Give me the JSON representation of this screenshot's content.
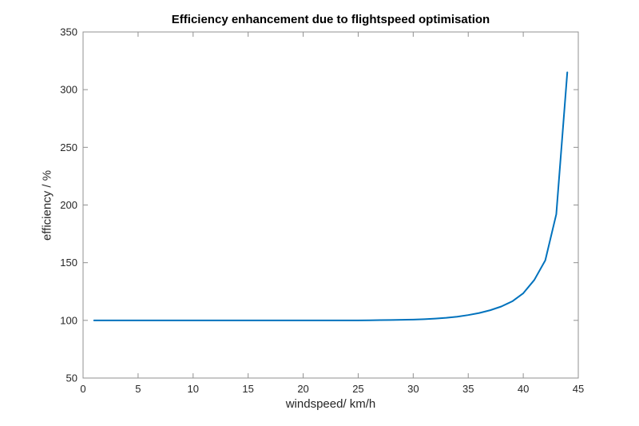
{
  "figure": {
    "background_color": "#ffffff",
    "axis_box_color": "#909090",
    "tick_label_color": "#262626",
    "title_color": "#000000"
  },
  "chart_data": {
    "type": "line",
    "title": "Efficiency enhancement due to flightspeed optimisation",
    "xlabel": "windspeed/ km/h",
    "ylabel": "efficiency / %",
    "xlim": [
      0,
      45
    ],
    "ylim": [
      50,
      350
    ],
    "xticks": [
      0,
      5,
      10,
      15,
      20,
      25,
      30,
      35,
      40,
      45
    ],
    "yticks": [
      50,
      100,
      150,
      200,
      250,
      300,
      350
    ],
    "grid": false,
    "legend": "none",
    "line_color": "#0072BD",
    "line_width": 2,
    "series": [
      {
        "name": "efficiency",
        "x": [
          1,
          2,
          3,
          4,
          5,
          6,
          7,
          8,
          9,
          10,
          11,
          12,
          13,
          14,
          15,
          16,
          17,
          18,
          19,
          20,
          21,
          22,
          23,
          24,
          25,
          26,
          27,
          28,
          29,
          30,
          31,
          32,
          33,
          34,
          35,
          36,
          37,
          38,
          39,
          40,
          41,
          42,
          43,
          44
        ],
        "y": [
          100,
          100,
          100,
          100,
          100,
          100,
          100,
          100,
          100,
          100,
          100,
          100,
          100,
          100,
          100,
          100,
          100,
          100,
          100,
          100,
          100,
          100,
          100,
          100,
          100,
          100.1,
          100.2,
          100.3,
          100.5,
          100.7,
          101,
          101.5,
          102.2,
          103.2,
          104.6,
          106.4,
          108.8,
          112,
          116.5,
          123.5,
          135,
          152,
          192,
          315
        ]
      }
    ]
  }
}
